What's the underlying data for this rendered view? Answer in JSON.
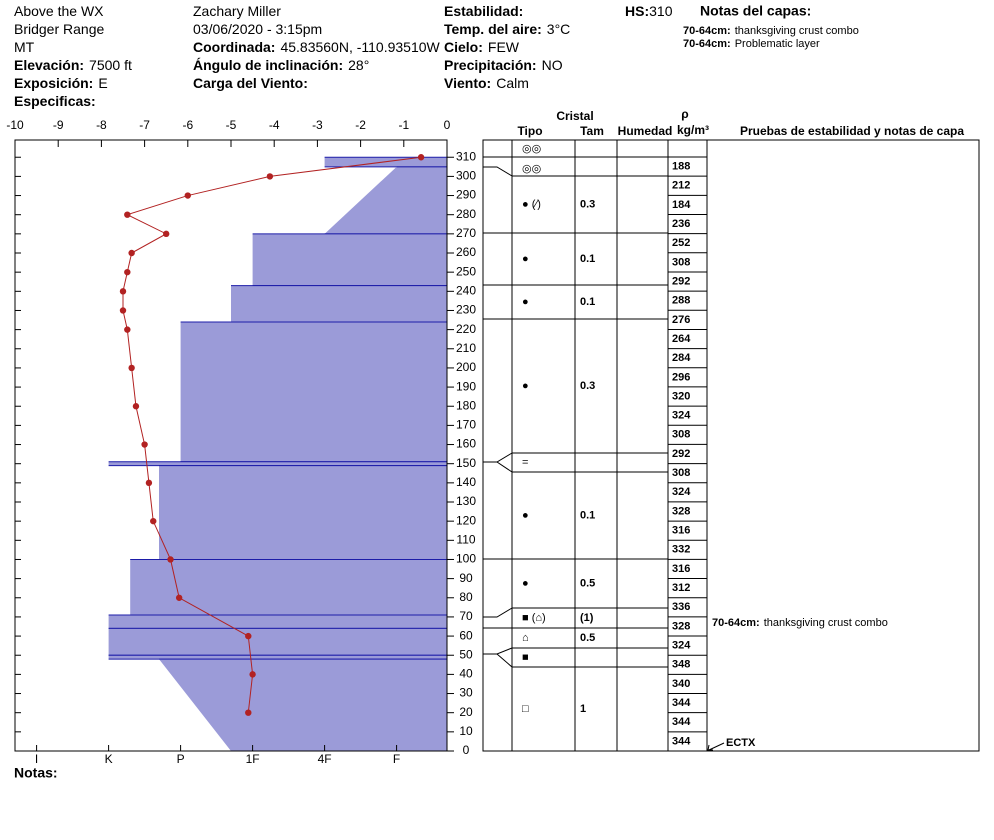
{
  "header": {
    "col1": [
      {
        "value": "Above the WX"
      },
      {
        "value": "Bridger Range"
      },
      {
        "value": "MT"
      },
      {
        "label": "Elevación:",
        "value": "7500 ft"
      },
      {
        "label": "Exposición:",
        "value": "E"
      },
      {
        "label": "Especificas:"
      }
    ],
    "col2": [
      {
        "value": "Zachary Miller"
      },
      {
        "value": "03/06/2020 - 3:15pm"
      },
      {
        "label": "Coordinada:",
        "value": "45.83560N, -110.93510W"
      },
      {
        "label": "Ángulo de inclinación:",
        "value": "28°"
      },
      {
        "label": "Carga del Viento:"
      }
    ],
    "col3": [
      {
        "label": "Estabilidad:"
      },
      {
        "label": "Temp. del aire:",
        "value": "3°C"
      },
      {
        "label": "Cielo:",
        "value": "FEW"
      },
      {
        "label": "Precipitación:",
        "value": "NO"
      },
      {
        "label": "Viento:",
        "value": "Calm"
      }
    ],
    "hs": {
      "label": "HS:",
      "value": "310"
    },
    "notes_title": "Notas del capas:",
    "notes": [
      {
        "label": "70-64cm:",
        "text": "thanksgiving crust combo"
      },
      {
        "label": "70-64cm:",
        "text": "Problematic layer"
      }
    ]
  },
  "chart_data": {
    "type": "snow_profile",
    "depth": {
      "ylim": [
        0,
        319
      ],
      "yticks": [
        0,
        10,
        20,
        30,
        40,
        50,
        60,
        70,
        80,
        90,
        100,
        110,
        120,
        130,
        140,
        150,
        160,
        170,
        180,
        190,
        200,
        210,
        220,
        230,
        240,
        250,
        260,
        270,
        280,
        290,
        300,
        310
      ]
    },
    "temperature": {
      "xlim": [
        -10,
        0
      ],
      "xticks": [
        -10,
        -9,
        -8,
        -7,
        -6,
        -5,
        -4,
        -3,
        -2,
        -1,
        0
      ],
      "color": "#b22222",
      "depths": [
        310,
        300,
        290,
        280,
        270,
        260,
        250,
        240,
        230,
        220,
        200,
        180,
        160,
        140,
        120,
        100,
        80,
        60,
        40,
        20
      ],
      "values": [
        -0.6,
        -4.1,
        -6.0,
        -7.4,
        -6.5,
        -7.3,
        -7.4,
        -7.5,
        -7.5,
        -7.4,
        -7.3,
        -7.2,
        -7.0,
        -6.9,
        -6.8,
        -6.4,
        -6.2,
        -4.6,
        -4.5,
        -4.6
      ]
    },
    "hardness": {
      "xlim": [
        6.3,
        0.3
      ],
      "xticks": [
        {
          "value": 6,
          "label": "I"
        },
        {
          "value": 5,
          "label": "K"
        },
        {
          "value": 4,
          "label": "P"
        },
        {
          "value": 3,
          "label": "1F"
        },
        {
          "value": 2,
          "label": "4F"
        },
        {
          "value": 1,
          "label": "F"
        }
      ],
      "color": "#9b9bd8",
      "line_color": "#1c1ca8",
      "layers": [
        {
          "top": 310,
          "bottom": 305,
          "hardness": 2
        },
        {
          "top": 305,
          "bottom": 270,
          "hardness": 1,
          "hardness_bottom": 2
        },
        {
          "top": 270,
          "bottom": 243,
          "hardness": 3
        },
        {
          "top": 243,
          "bottom": 224,
          "hardness": 3.3
        },
        {
          "top": 224,
          "bottom": 151,
          "hardness": 4
        },
        {
          "top": 151,
          "bottom": 149,
          "hardness": 5
        },
        {
          "top": 149,
          "bottom": 100,
          "hardness": 4.3
        },
        {
          "top": 100,
          "bottom": 71,
          "hardness": 4.7
        },
        {
          "top": 71,
          "bottom": 64,
          "hardness": 5
        },
        {
          "top": 64,
          "bottom": 50,
          "hardness": 5
        },
        {
          "top": 50,
          "bottom": 48,
          "hardness": 5
        },
        {
          "top": 48,
          "bottom": 0,
          "hardness": 4.3,
          "hardness_bottom": 3.3
        }
      ]
    },
    "footer": "Notas:"
  },
  "table": {
    "headers": {
      "crystal": "Cristal",
      "type": "Tipo",
      "size": "Tam",
      "moisture": "Humedad",
      "rho": "ρ",
      "density_unit": "kg/m³",
      "tests": "Pruebas de estabilidad y notas de capa"
    },
    "rows": [
      {
        "grain": "◎◎"
      },
      {
        "grain": "◎◎"
      },
      {
        "grain": "● (∕)",
        "size": 0.3
      },
      {
        "grain": "●",
        "size": 0.1
      },
      {
        "grain": "●",
        "size": 0.1
      },
      {
        "grain": "●",
        "size": 0.3
      },
      {
        "grain": "="
      },
      {
        "grain": "●",
        "size": 0.1
      },
      {
        "grain": "●",
        "size": 0.5
      },
      {
        "grain": "■ (⌂)",
        "size": "(1)"
      },
      {
        "grain": "⌂",
        "size": 0.5
      },
      {
        "grain": "■"
      },
      {
        "grain": "□",
        "size": 1
      }
    ],
    "densities": [
      188,
      212,
      184,
      236,
      252,
      308,
      292,
      288,
      276,
      264,
      284,
      296,
      320,
      324,
      308,
      292,
      308,
      324,
      328,
      316,
      332,
      316,
      312,
      336,
      328,
      324,
      348,
      340,
      344,
      344,
      344
    ],
    "layer_note": {
      "label": "70-64cm:",
      "text": "thanksgiving crust combo"
    },
    "test": "ECTX"
  }
}
